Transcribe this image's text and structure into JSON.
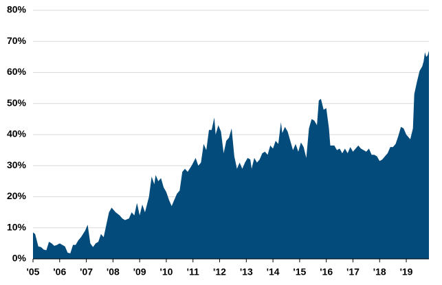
{
  "chart_data": {
    "type": "area",
    "color": "#034b7b",
    "grid": true,
    "x": [
      2005.0,
      2005.08,
      2005.2,
      2005.3,
      2005.4,
      2005.5,
      2005.6,
      2005.7,
      2005.8,
      2005.9,
      2006.0,
      2006.1,
      2006.2,
      2006.3,
      2006.4,
      2006.5,
      2006.6,
      2006.7,
      2006.8,
      2006.95,
      2007.05,
      2007.15,
      2007.25,
      2007.35,
      2007.45,
      2007.55,
      2007.65,
      2007.75,
      2007.85,
      2007.95,
      2008.1,
      2008.25,
      2008.35,
      2008.45,
      2008.6,
      2008.7,
      2008.8,
      2008.9,
      2009.0,
      2009.1,
      2009.2,
      2009.35,
      2009.45,
      2009.55,
      2009.6,
      2009.7,
      2009.8,
      2009.9,
      2010.0,
      2010.1,
      2010.2,
      2010.3,
      2010.4,
      2010.5,
      2010.6,
      2010.7,
      2010.8,
      2010.95,
      2011.1,
      2011.2,
      2011.3,
      2011.4,
      2011.5,
      2011.6,
      2011.7,
      2011.8,
      2011.85,
      2011.95,
      2012.05,
      2012.15,
      2012.25,
      2012.35,
      2012.45,
      2012.55,
      2012.65,
      2012.75,
      2012.85,
      2012.95,
      2013.05,
      2013.15,
      2013.2,
      2013.3,
      2013.4,
      2013.5,
      2013.6,
      2013.7,
      2013.8,
      2013.9,
      2014.0,
      2014.1,
      2014.2,
      2014.3,
      2014.35,
      2014.45,
      2014.55,
      2014.65,
      2014.75,
      2014.85,
      2014.95,
      2015.05,
      2015.15,
      2015.25,
      2015.35,
      2015.45,
      2015.55,
      2015.65,
      2015.72,
      2015.8,
      2015.9,
      2016.0,
      2016.1,
      2016.15,
      2016.3,
      2016.4,
      2016.5,
      2016.6,
      2016.7,
      2016.8,
      2016.9,
      2017.0,
      2017.1,
      2017.2,
      2017.3,
      2017.4,
      2017.5,
      2017.6,
      2017.7,
      2017.8,
      2017.9,
      2018.0,
      2018.1,
      2018.2,
      2018.3,
      2018.4,
      2018.5,
      2018.6,
      2018.7,
      2018.8,
      2018.9,
      2019.0,
      2019.1,
      2019.15,
      2019.25,
      2019.3,
      2019.4,
      2019.5,
      2019.6,
      2019.65,
      2019.7,
      2019.75,
      2019.8,
      2019.85
    ],
    "values": [
      8.5,
      8,
      4,
      3.8,
      3,
      2.8,
      5.5,
      5,
      4.2,
      4.5,
      5,
      4.5,
      4,
      2,
      1.8,
      4.5,
      4.5,
      6,
      7,
      9,
      11,
      5,
      3.8,
      5,
      5.5,
      8,
      7,
      11,
      15,
      16.5,
      15,
      14,
      13,
      12.5,
      13,
      15,
      14,
      18,
      14,
      17.5,
      15,
      20,
      26.5,
      24,
      27,
      25,
      26,
      23,
      21.5,
      19,
      17,
      19,
      21,
      22,
      28,
      29,
      28,
      30,
      32.5,
      30,
      31,
      37,
      35,
      41.5,
      41.5,
      45.5,
      40,
      43,
      41,
      34,
      38,
      39,
      42,
      33,
      29,
      31,
      29,
      31,
      32.5,
      32,
      29,
      32.5,
      31,
      32,
      34,
      34.5,
      33.5,
      36.5,
      35.5,
      38,
      37,
      44,
      40.5,
      42.5,
      41,
      38,
      35,
      37,
      34.5,
      37.5,
      36,
      32.5,
      42,
      45,
      44.5,
      43,
      51,
      51.5,
      48,
      48.5,
      42,
      36.5,
      36.5,
      35,
      35.5,
      34,
      35.5,
      34,
      36,
      34.5,
      35.5,
      36.5,
      35.5,
      35,
      34.5,
      35.5,
      33.5,
      33.5,
      33,
      31.5,
      32,
      33,
      34,
      36,
      36,
      37,
      39.5,
      42.5,
      42,
      40,
      39,
      38.5,
      42,
      53,
      57,
      60.5,
      62,
      63.5,
      66.5,
      65,
      65.5,
      67
    ],
    "xlim": [
      2005,
      2019.85
    ],
    "xticks": [
      {
        "value": 2005,
        "label": "'05"
      },
      {
        "value": 2006,
        "label": "'06"
      },
      {
        "value": 2007,
        "label": "'07"
      },
      {
        "value": 2008,
        "label": "'08"
      },
      {
        "value": 2009,
        "label": "'09"
      },
      {
        "value": 2010,
        "label": "'10"
      },
      {
        "value": 2011,
        "label": "'11"
      },
      {
        "value": 2012,
        "label": "'12"
      },
      {
        "value": 2013,
        "label": "'13"
      },
      {
        "value": 2014,
        "label": "'14"
      },
      {
        "value": 2015,
        "label": "'15"
      },
      {
        "value": 2016,
        "label": "'16"
      },
      {
        "value": 2017,
        "label": "'17"
      },
      {
        "value": 2018,
        "label": "'18"
      },
      {
        "value": 2019,
        "label": "'19"
      }
    ],
    "ylim": [
      0,
      80
    ],
    "yticks": [
      {
        "value": 0,
        "label": "0%"
      },
      {
        "value": 10,
        "label": "10%"
      },
      {
        "value": 20,
        "label": "20%"
      },
      {
        "value": 30,
        "label": "30%"
      },
      {
        "value": 40,
        "label": "40%"
      },
      {
        "value": 50,
        "label": "50%"
      },
      {
        "value": 60,
        "label": "60%"
      },
      {
        "value": 70,
        "label": "70%"
      },
      {
        "value": 80,
        "label": "80%"
      }
    ]
  }
}
